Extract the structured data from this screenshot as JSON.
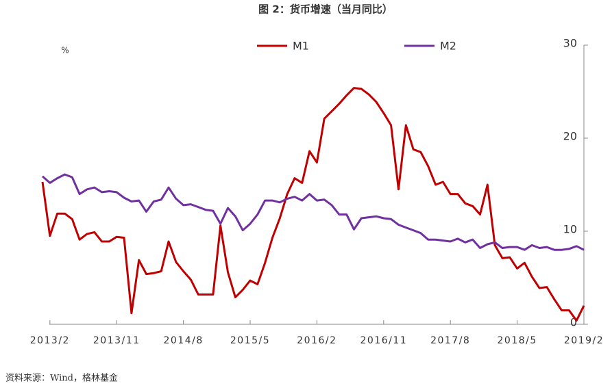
{
  "chart_data": {
    "type": "line",
    "title": "图 2：货币增速（当月同比）",
    "y_label": "%",
    "source": "资料来源：Wind，格林基金",
    "categories": [
      null,
      "2013/2",
      null,
      null,
      null,
      null,
      null,
      null,
      null,
      null,
      "2013/11",
      null,
      null,
      null,
      null,
      null,
      null,
      null,
      null,
      "2014/8",
      null,
      null,
      null,
      null,
      null,
      null,
      null,
      null,
      "2015/5",
      null,
      null,
      null,
      null,
      null,
      null,
      null,
      null,
      "2016/2",
      null,
      null,
      null,
      null,
      null,
      null,
      null,
      null,
      "2016/11",
      null,
      null,
      null,
      null,
      null,
      null,
      null,
      null,
      "2017/8",
      null,
      null,
      null,
      null,
      null,
      null,
      null,
      null,
      "2018/5",
      null,
      null,
      null,
      null,
      null,
      null,
      null,
      null,
      "2019/2"
    ],
    "series": [
      {
        "name": "M1",
        "color": "#c00000",
        "values": [
          15.3,
          9.5,
          11.9,
          11.9,
          11.3,
          9.1,
          9.7,
          9.9,
          8.9,
          8.9,
          9.4,
          9.3,
          1.2,
          6.9,
          5.4,
          5.5,
          5.7,
          8.9,
          6.7,
          5.7,
          4.8,
          3.2,
          3.2,
          3.2,
          10.6,
          5.6,
          2.9,
          3.7,
          4.7,
          4.3,
          6.6,
          9.3,
          11.4,
          14.0,
          15.7,
          15.2,
          18.6,
          17.4,
          22.1,
          22.9,
          23.7,
          24.6,
          25.4,
          25.3,
          24.7,
          23.9,
          22.7,
          21.4,
          14.5,
          21.4,
          18.8,
          18.5,
          17.0,
          15.0,
          15.3,
          14.0,
          14.0,
          13.0,
          12.7,
          11.8,
          15.0,
          8.5,
          7.1,
          7.2,
          6.0,
          6.6,
          5.1,
          3.9,
          4.0,
          2.7,
          1.5,
          1.5,
          0.4,
          2.0
        ]
      },
      {
        "name": "M2",
        "color": "#7030a0",
        "values": [
          15.9,
          15.2,
          15.7,
          16.1,
          15.8,
          14.0,
          14.5,
          14.7,
          14.2,
          14.3,
          14.2,
          13.6,
          13.2,
          13.3,
          12.1,
          13.2,
          13.4,
          14.7,
          13.5,
          12.8,
          12.9,
          12.6,
          12.3,
          12.2,
          10.8,
          12.5,
          11.6,
          10.1,
          10.8,
          11.8,
          13.3,
          13.3,
          13.1,
          13.5,
          13.7,
          13.3,
          14.0,
          13.3,
          13.4,
          12.8,
          11.8,
          11.8,
          10.2,
          11.4,
          11.5,
          11.6,
          11.4,
          11.3,
          10.7,
          10.4,
          10.1,
          9.8,
          9.1,
          9.1,
          9.0,
          8.9,
          9.2,
          8.8,
          9.1,
          8.2,
          8.6,
          8.8,
          8.2,
          8.3,
          8.3,
          8.0,
          8.5,
          8.2,
          8.3,
          8.0,
          8.0,
          8.1,
          8.4,
          8.0
        ]
      }
    ],
    "ylim": [
      0,
      30
    ],
    "yticks": [
      0,
      10,
      20,
      30
    ],
    "grid": false
  }
}
